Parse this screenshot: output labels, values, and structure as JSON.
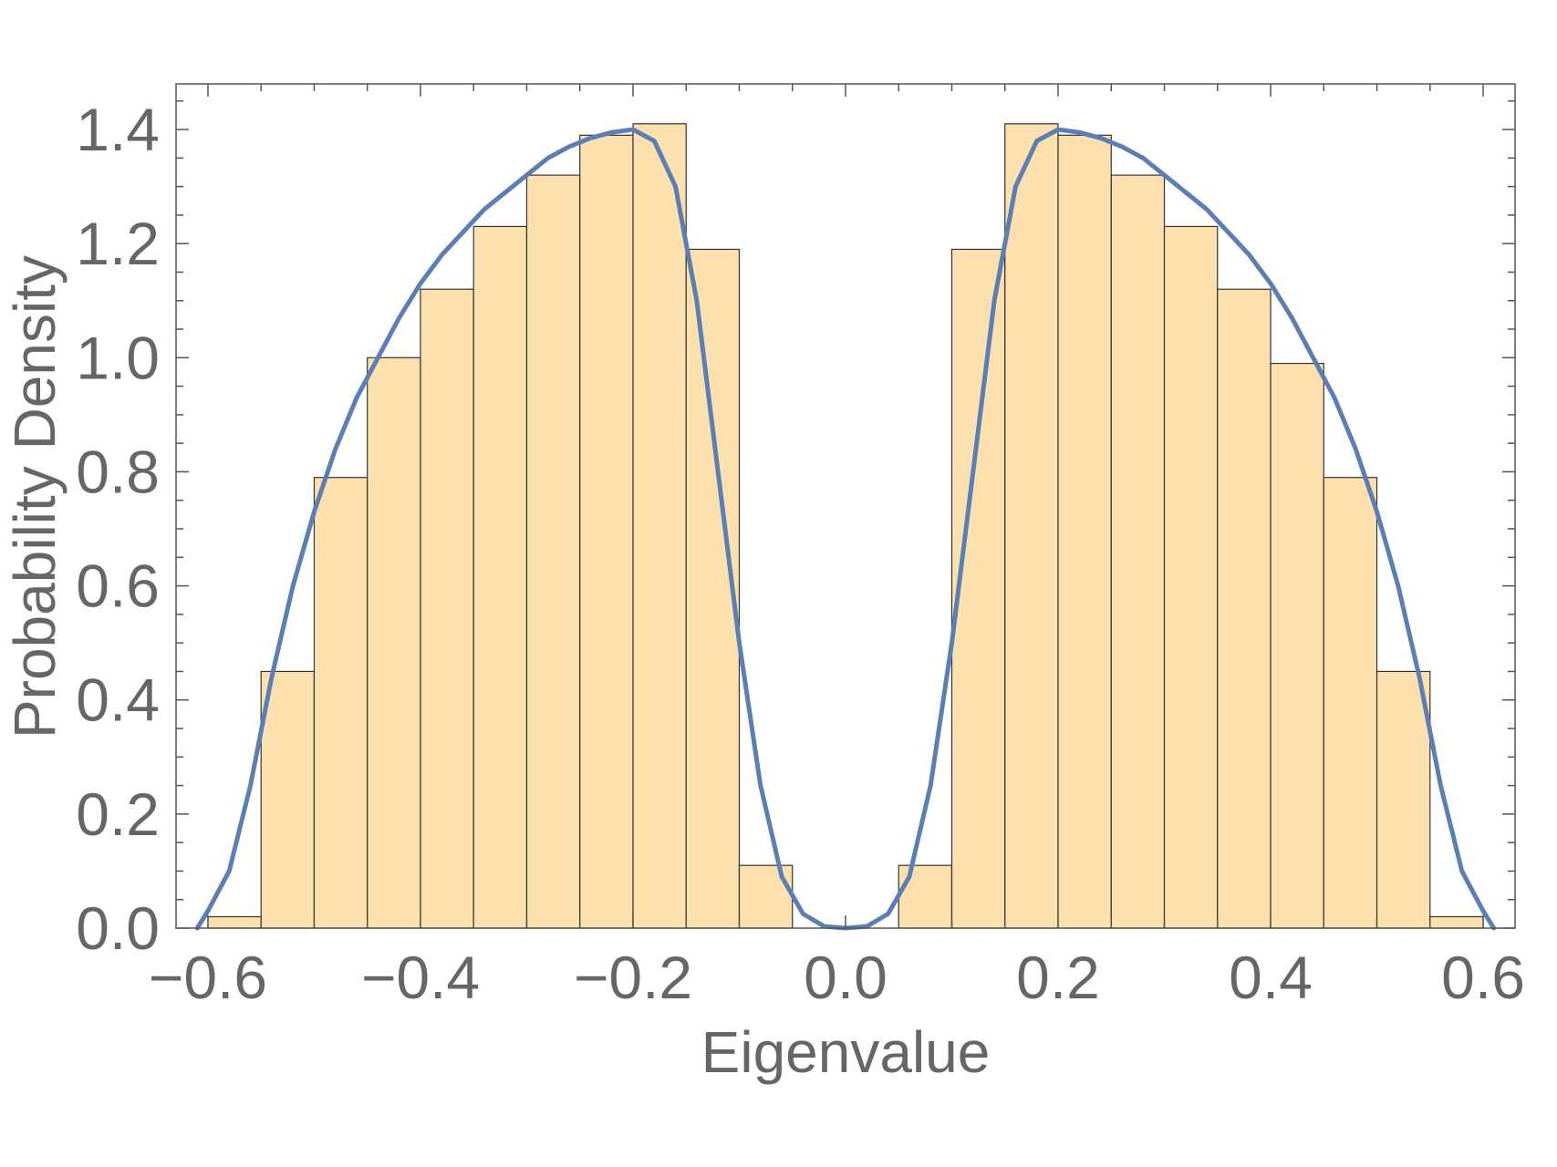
{
  "chart_data": {
    "type": "bar",
    "title": "",
    "xlabel": "Eigenvalue",
    "ylabel": "Probability Density",
    "xlim": [
      -0.63,
      0.63
    ],
    "ylim": [
      0,
      1.48
    ],
    "x_ticks": [
      -0.6,
      -0.4,
      -0.2,
      0.0,
      0.2,
      0.4,
      0.6
    ],
    "x_tick_labels": [
      "−0.6",
      "−0.4",
      "−0.2",
      "0.0",
      "0.2",
      "0.4",
      "0.6"
    ],
    "y_ticks": [
      0.0,
      0.2,
      0.4,
      0.6,
      0.8,
      1.0,
      1.2,
      1.4
    ],
    "y_tick_labels": [
      "0.0",
      "0.2",
      "0.4",
      "0.6",
      "0.8",
      "1.0",
      "1.2",
      "1.4"
    ],
    "grid": false,
    "colors": {
      "bar_fill": "#fce0ad",
      "bar_edge": "#333333",
      "curve": "#5b7fb5",
      "text": "#666666",
      "frame": "#555555"
    },
    "histogram": {
      "bin_width": 0.05,
      "bins": [
        {
          "x0": -0.6,
          "x1": -0.55,
          "value": 0.02
        },
        {
          "x0": -0.55,
          "x1": -0.5,
          "value": 0.45
        },
        {
          "x0": -0.5,
          "x1": -0.45,
          "value": 0.79
        },
        {
          "x0": -0.45,
          "x1": -0.4,
          "value": 1.0
        },
        {
          "x0": -0.4,
          "x1": -0.35,
          "value": 1.12
        },
        {
          "x0": -0.35,
          "x1": -0.3,
          "value": 1.23
        },
        {
          "x0": -0.3,
          "x1": -0.25,
          "value": 1.32
        },
        {
          "x0": -0.25,
          "x1": -0.2,
          "value": 1.39
        },
        {
          "x0": -0.2,
          "x1": -0.15,
          "value": 1.41
        },
        {
          "x0": -0.15,
          "x1": -0.1,
          "value": 1.19
        },
        {
          "x0": -0.1,
          "x1": -0.05,
          "value": 0.11
        },
        {
          "x0": 0.05,
          "x1": 0.1,
          "value": 0.11
        },
        {
          "x0": 0.1,
          "x1": 0.15,
          "value": 1.19
        },
        {
          "x0": 0.15,
          "x1": 0.2,
          "value": 1.41
        },
        {
          "x0": 0.2,
          "x1": 0.25,
          "value": 1.39
        },
        {
          "x0": 0.25,
          "x1": 0.3,
          "value": 1.32
        },
        {
          "x0": 0.3,
          "x1": 0.35,
          "value": 1.23
        },
        {
          "x0": 0.35,
          "x1": 0.4,
          "value": 1.12
        },
        {
          "x0": 0.4,
          "x1": 0.45,
          "value": 0.99
        },
        {
          "x0": 0.45,
          "x1": 0.5,
          "value": 0.79
        },
        {
          "x0": 0.5,
          "x1": 0.55,
          "value": 0.45
        },
        {
          "x0": 0.55,
          "x1": 0.6,
          "value": 0.02
        }
      ]
    },
    "curve": {
      "points": [
        [
          -0.61,
          0.0
        ],
        [
          -0.6,
          0.03
        ],
        [
          -0.58,
          0.1
        ],
        [
          -0.56,
          0.25
        ],
        [
          -0.54,
          0.44
        ],
        [
          -0.52,
          0.6
        ],
        [
          -0.5,
          0.73
        ],
        [
          -0.48,
          0.84
        ],
        [
          -0.46,
          0.93
        ],
        [
          -0.44,
          1.0
        ],
        [
          -0.42,
          1.07
        ],
        [
          -0.4,
          1.13
        ],
        [
          -0.38,
          1.18
        ],
        [
          -0.36,
          1.22
        ],
        [
          -0.34,
          1.26
        ],
        [
          -0.32,
          1.29
        ],
        [
          -0.3,
          1.32
        ],
        [
          -0.28,
          1.35
        ],
        [
          -0.26,
          1.37
        ],
        [
          -0.24,
          1.385
        ],
        [
          -0.22,
          1.395
        ],
        [
          -0.2,
          1.4
        ],
        [
          -0.18,
          1.38
        ],
        [
          -0.16,
          1.3
        ],
        [
          -0.14,
          1.1
        ],
        [
          -0.12,
          0.8
        ],
        [
          -0.1,
          0.5
        ],
        [
          -0.08,
          0.25
        ],
        [
          -0.06,
          0.09
        ],
        [
          -0.04,
          0.025
        ],
        [
          -0.02,
          0.003
        ],
        [
          0.0,
          0.0
        ],
        [
          0.02,
          0.003
        ],
        [
          0.04,
          0.025
        ],
        [
          0.06,
          0.09
        ],
        [
          0.08,
          0.25
        ],
        [
          0.1,
          0.5
        ],
        [
          0.12,
          0.8
        ],
        [
          0.14,
          1.1
        ],
        [
          0.16,
          1.3
        ],
        [
          0.18,
          1.38
        ],
        [
          0.2,
          1.4
        ],
        [
          0.22,
          1.395
        ],
        [
          0.24,
          1.385
        ],
        [
          0.26,
          1.37
        ],
        [
          0.28,
          1.35
        ],
        [
          0.3,
          1.32
        ],
        [
          0.32,
          1.29
        ],
        [
          0.34,
          1.26
        ],
        [
          0.36,
          1.22
        ],
        [
          0.38,
          1.18
        ],
        [
          0.4,
          1.13
        ],
        [
          0.42,
          1.07
        ],
        [
          0.44,
          1.0
        ],
        [
          0.46,
          0.93
        ],
        [
          0.48,
          0.84
        ],
        [
          0.5,
          0.73
        ],
        [
          0.52,
          0.6
        ],
        [
          0.54,
          0.44
        ],
        [
          0.56,
          0.25
        ],
        [
          0.58,
          0.1
        ],
        [
          0.6,
          0.03
        ],
        [
          0.61,
          0.0
        ]
      ]
    }
  }
}
